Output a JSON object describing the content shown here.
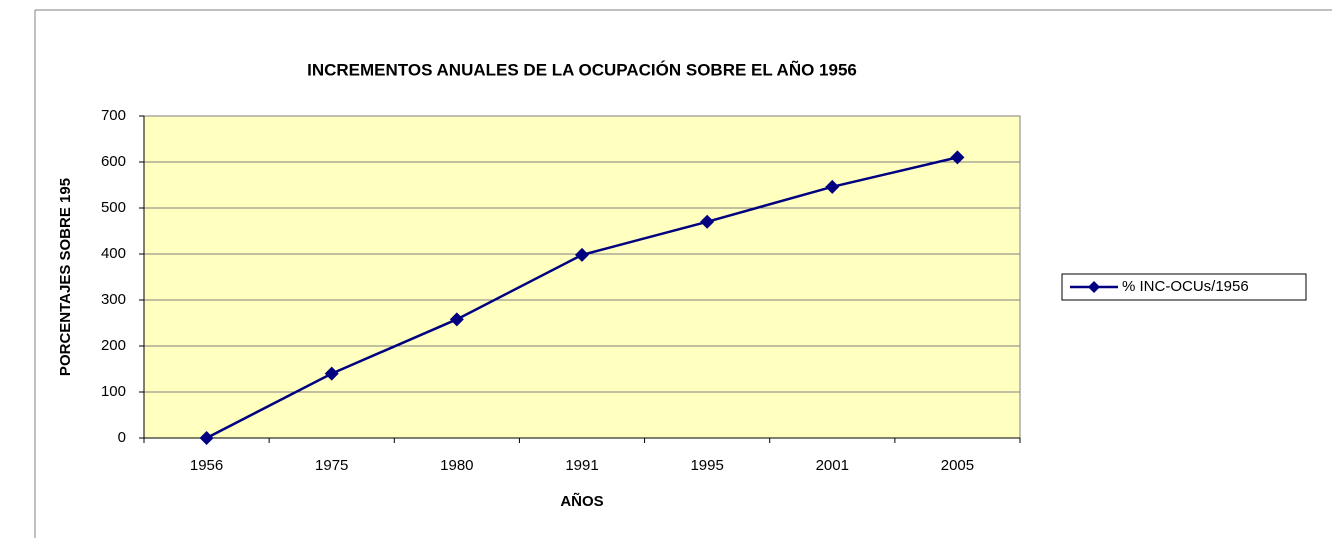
{
  "chart_data": {
    "type": "line",
    "title": "INCREMENTOS ANUALES DE LA OCUPACIÓN SOBRE EL AÑO 1956",
    "x_label": "AÑOS",
    "y_label": "PORCENTAJES SOBRE 195",
    "categories": [
      "1956",
      "1975",
      "1980",
      "1991",
      "1995",
      "2001",
      "2005"
    ],
    "series": [
      {
        "name": "% INC-OCUs/1956",
        "color": "#000080",
        "values": [
          0,
          140,
          258,
          398,
          470,
          546,
          610
        ]
      }
    ],
    "ylim": [
      0,
      700
    ],
    "yticks": [
      0,
      100,
      200,
      300,
      400,
      500,
      600,
      700
    ],
    "grid": true,
    "legend": "right",
    "plot_background": "#ffffc0"
  }
}
